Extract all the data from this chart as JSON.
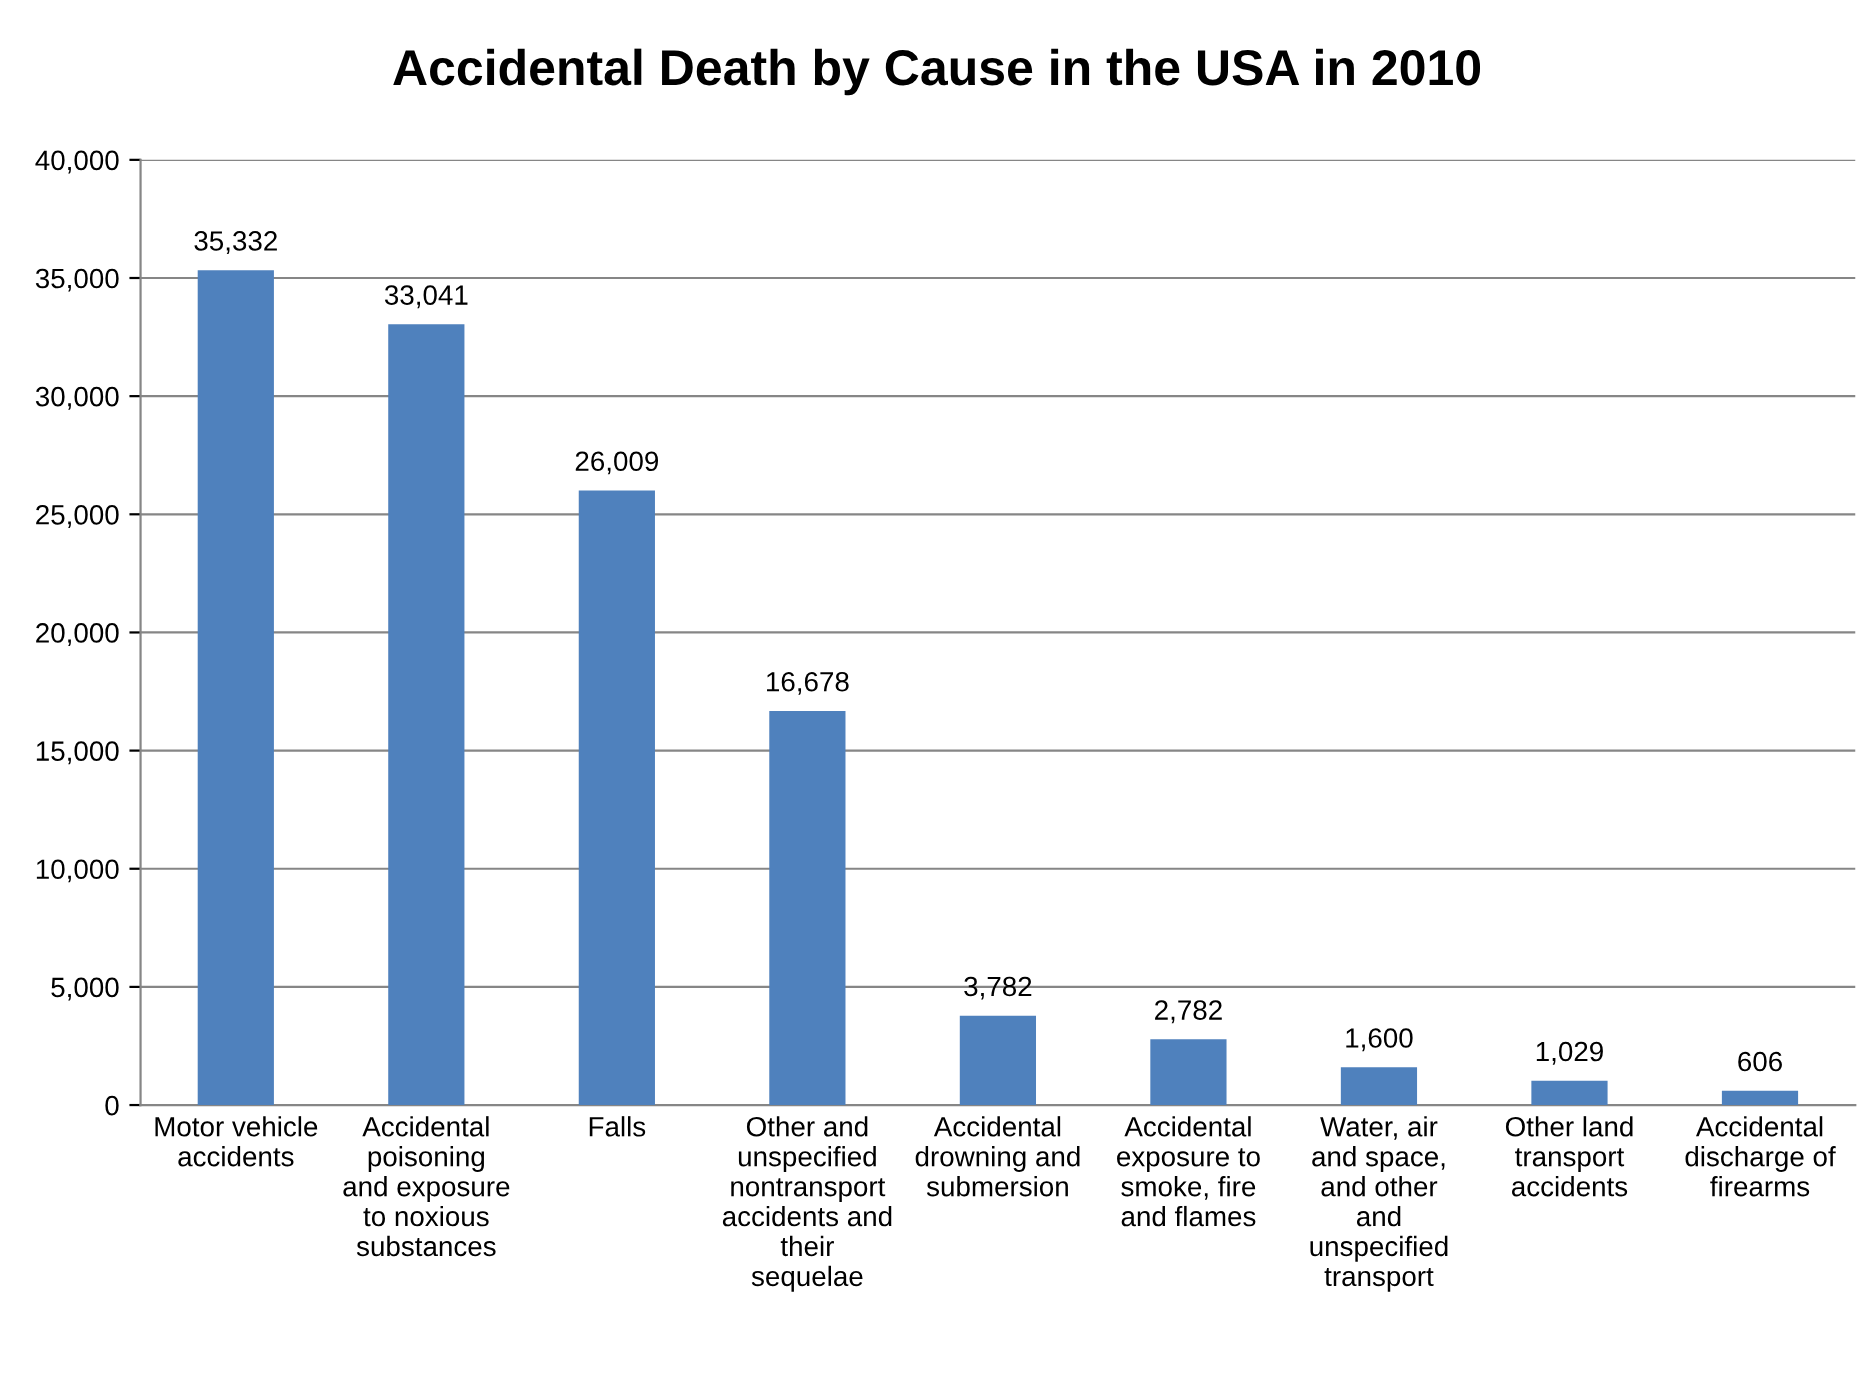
{
  "chart_data": {
    "type": "bar",
    "title": "Accidental Death by Cause in the USA in 2010",
    "categories": [
      "Motor vehicle\naccidents",
      "Accidental\npoisoning\nand exposure\nto noxious\nsubstances",
      "Falls",
      "Other and\nunspecified\nnontransport\naccidents and\ntheir\nsequelae",
      "Accidental\ndrowning and\nsubmersion",
      "Accidental\nexposure to\nsmoke, fire\nand flames",
      "Water, air\nand space,\nand other\nand\nunspecified\ntransport",
      "Other land\ntransport\naccidents",
      "Accidental\ndischarge of\nfirearms"
    ],
    "values": [
      35332,
      33041,
      26009,
      16678,
      3782,
      2782,
      1600,
      1029,
      606
    ],
    "color": "#4f81bd",
    "ylim": [
      0,
      40000
    ],
    "yticks": [
      0,
      {
        "value": 5000,
        "label": "5,000"
      },
      {
        "value": 10000,
        "label": "10,000"
      },
      {
        "value": 15000,
        "label": "15,000"
      },
      {
        "value": 20000,
        "label": "20,000"
      },
      {
        "value": 25000,
        "label": "25,000"
      },
      {
        "value": 30000,
        "label": "30,000"
      },
      {
        "value": 35000,
        "label": "35,000"
      },
      {
        "value": 40000,
        "label": "40,000"
      }
    ],
    "value_labels": [
      "35,332",
      "33,041",
      "26,009",
      "16,678",
      "3,782",
      "2,782",
      "1,600",
      "1,029",
      "606"
    ],
    "grid": "y",
    "legend": false
  }
}
